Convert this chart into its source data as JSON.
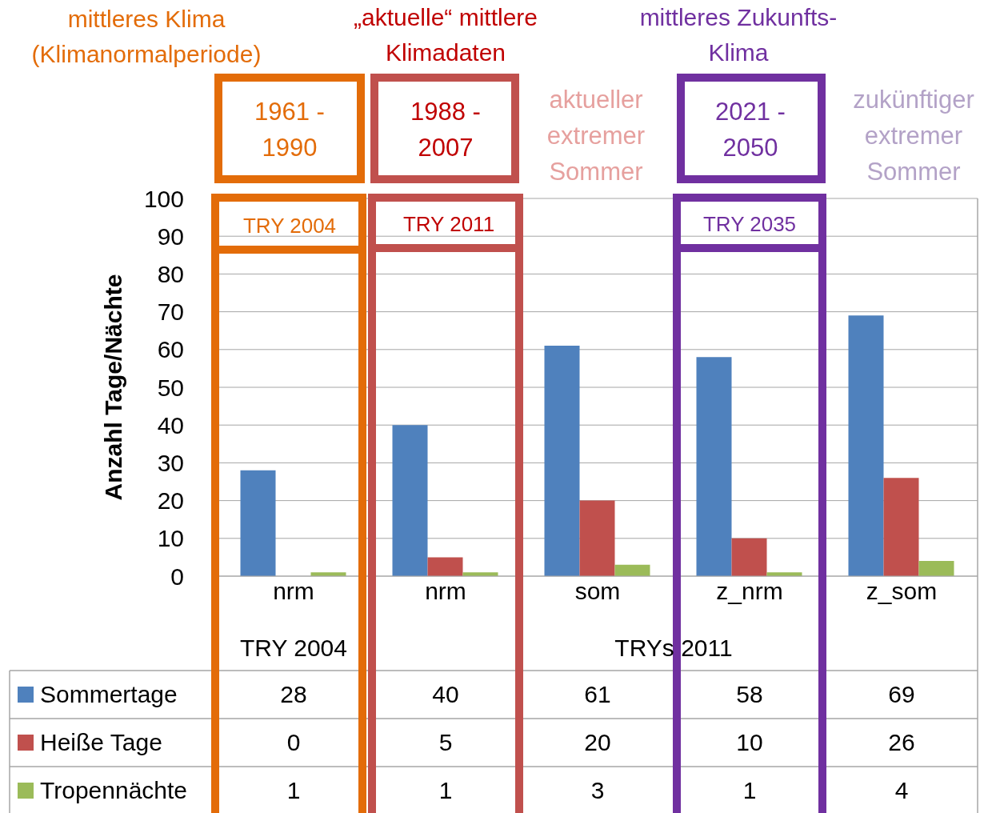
{
  "chart_data": {
    "type": "bar",
    "ylabel": "Anzahl Tage/Nächte",
    "categories": [
      "nrm",
      "nrm",
      "som",
      "z_nrm",
      "z_som"
    ],
    "series": [
      {
        "name": "Sommertage",
        "color": "#4f81bd",
        "values": [
          28,
          40,
          61,
          58,
          69
        ]
      },
      {
        "name": "Heiße Tage",
        "color": "#c0504d",
        "values": [
          0,
          5,
          20,
          10,
          26
        ]
      },
      {
        "name": "Tropennächte",
        "color": "#9bbb59",
        "values": [
          1,
          1,
          3,
          1,
          4
        ]
      }
    ],
    "ylim": [
      0,
      100
    ],
    "yticks": [
      0,
      10,
      20,
      30,
      40,
      50,
      60,
      70,
      80,
      90,
      100
    ],
    "grid": "y",
    "legend": "bottom",
    "data_labels": true,
    "annotations": [
      "mittleres Klima (Klimanormalperiode)",
      "„aktuelle“ mittlere Klimadaten",
      "mittleres Zukunfts-Klima",
      "1961 - 1990",
      "1988 - 2007",
      "aktueller extremer Sommer",
      "2021 - 2050",
      "zukünftiger extremer Sommer",
      "TRY 2004",
      "TRY 2011",
      "TRY 2035",
      "TRY 2004",
      "TRYs 2011"
    ]
  }
}
